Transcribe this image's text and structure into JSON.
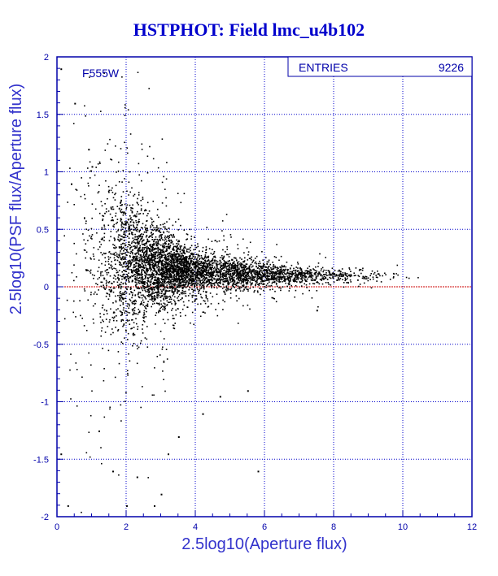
{
  "chart_data": {
    "type": "scatter",
    "title": "HSTPHOT: Field lmc_u4b102",
    "xlabel": "2.5log10(Aperture flux)",
    "ylabel": "2.5log10(PSF flux/Aperture flux)",
    "xlim": [
      0,
      12
    ],
    "ylim": [
      -2,
      2
    ],
    "xticks": [
      0,
      2,
      4,
      6,
      8,
      10,
      12
    ],
    "yticks": [
      -2,
      -1.5,
      -1,
      -0.5,
      0,
      0.5,
      1,
      1.5,
      2
    ],
    "xtick_labels": [
      "0",
      "2",
      "4",
      "6",
      "8",
      "10",
      "12"
    ],
    "ytick_labels": [
      "-2",
      "-1.5",
      "-1",
      "-0.5",
      "0",
      "0.5",
      "1",
      "1.5",
      "2"
    ],
    "grid": true,
    "reference_line": {
      "y": 0,
      "color": "#cc0000"
    },
    "filter_label": "F555W",
    "stats_box": {
      "label": "ENTRIES",
      "value": "9226"
    },
    "colors": {
      "frame": "#0000aa",
      "grid": "#0000cc",
      "points": "#000000",
      "title": "#0000cc"
    },
    "series": [
      {
        "density_profile": [
          {
            "x": 0.5,
            "center": 0.25,
            "spread": 0.55,
            "count": 60
          },
          {
            "x": 1.0,
            "center": 0.25,
            "spread": 0.45,
            "count": 180
          },
          {
            "x": 1.5,
            "center": 0.25,
            "spread": 0.38,
            "count": 420
          },
          {
            "x": 2.0,
            "center": 0.22,
            "spread": 0.3,
            "count": 900
          },
          {
            "x": 2.5,
            "center": 0.2,
            "spread": 0.22,
            "count": 1200
          },
          {
            "x": 3.0,
            "center": 0.17,
            "spread": 0.16,
            "count": 1300
          },
          {
            "x": 3.5,
            "center": 0.15,
            "spread": 0.12,
            "count": 1300
          },
          {
            "x": 4.0,
            "center": 0.13,
            "spread": 0.09,
            "count": 1200
          },
          {
            "x": 5.0,
            "center": 0.12,
            "spread": 0.07,
            "count": 1100
          },
          {
            "x": 6.0,
            "center": 0.11,
            "spread": 0.05,
            "count": 800
          },
          {
            "x": 7.0,
            "center": 0.1,
            "spread": 0.04,
            "count": 500
          },
          {
            "x": 8.0,
            "center": 0.1,
            "spread": 0.035,
            "count": 250
          },
          {
            "x": 9.0,
            "center": 0.1,
            "spread": 0.03,
            "count": 90
          },
          {
            "x": 10.0,
            "center": 0.1,
            "spread": 0.03,
            "count": 20
          }
        ],
        "outliers": [
          [
            0.1,
            1.9
          ],
          [
            0.5,
            1.6
          ],
          [
            0.9,
            1.2
          ],
          [
            1.0,
            1.05
          ],
          [
            0.4,
            0.9
          ],
          [
            0.1,
            -1.45
          ],
          [
            0.3,
            -1.9
          ],
          [
            1.2,
            -1.25
          ],
          [
            1.6,
            -1.6
          ],
          [
            2.0,
            -1.9
          ],
          [
            2.3,
            -1.65
          ],
          [
            3.0,
            -1.8
          ],
          [
            3.2,
            -1.45
          ],
          [
            5.8,
            -1.6
          ],
          [
            4.2,
            -1.1
          ],
          [
            4.7,
            -0.95
          ],
          [
            5.5,
            -0.9
          ],
          [
            7.5,
            -0.2
          ],
          [
            3.5,
            -1.3
          ],
          [
            2.8,
            -1.9
          ]
        ]
      }
    ]
  }
}
